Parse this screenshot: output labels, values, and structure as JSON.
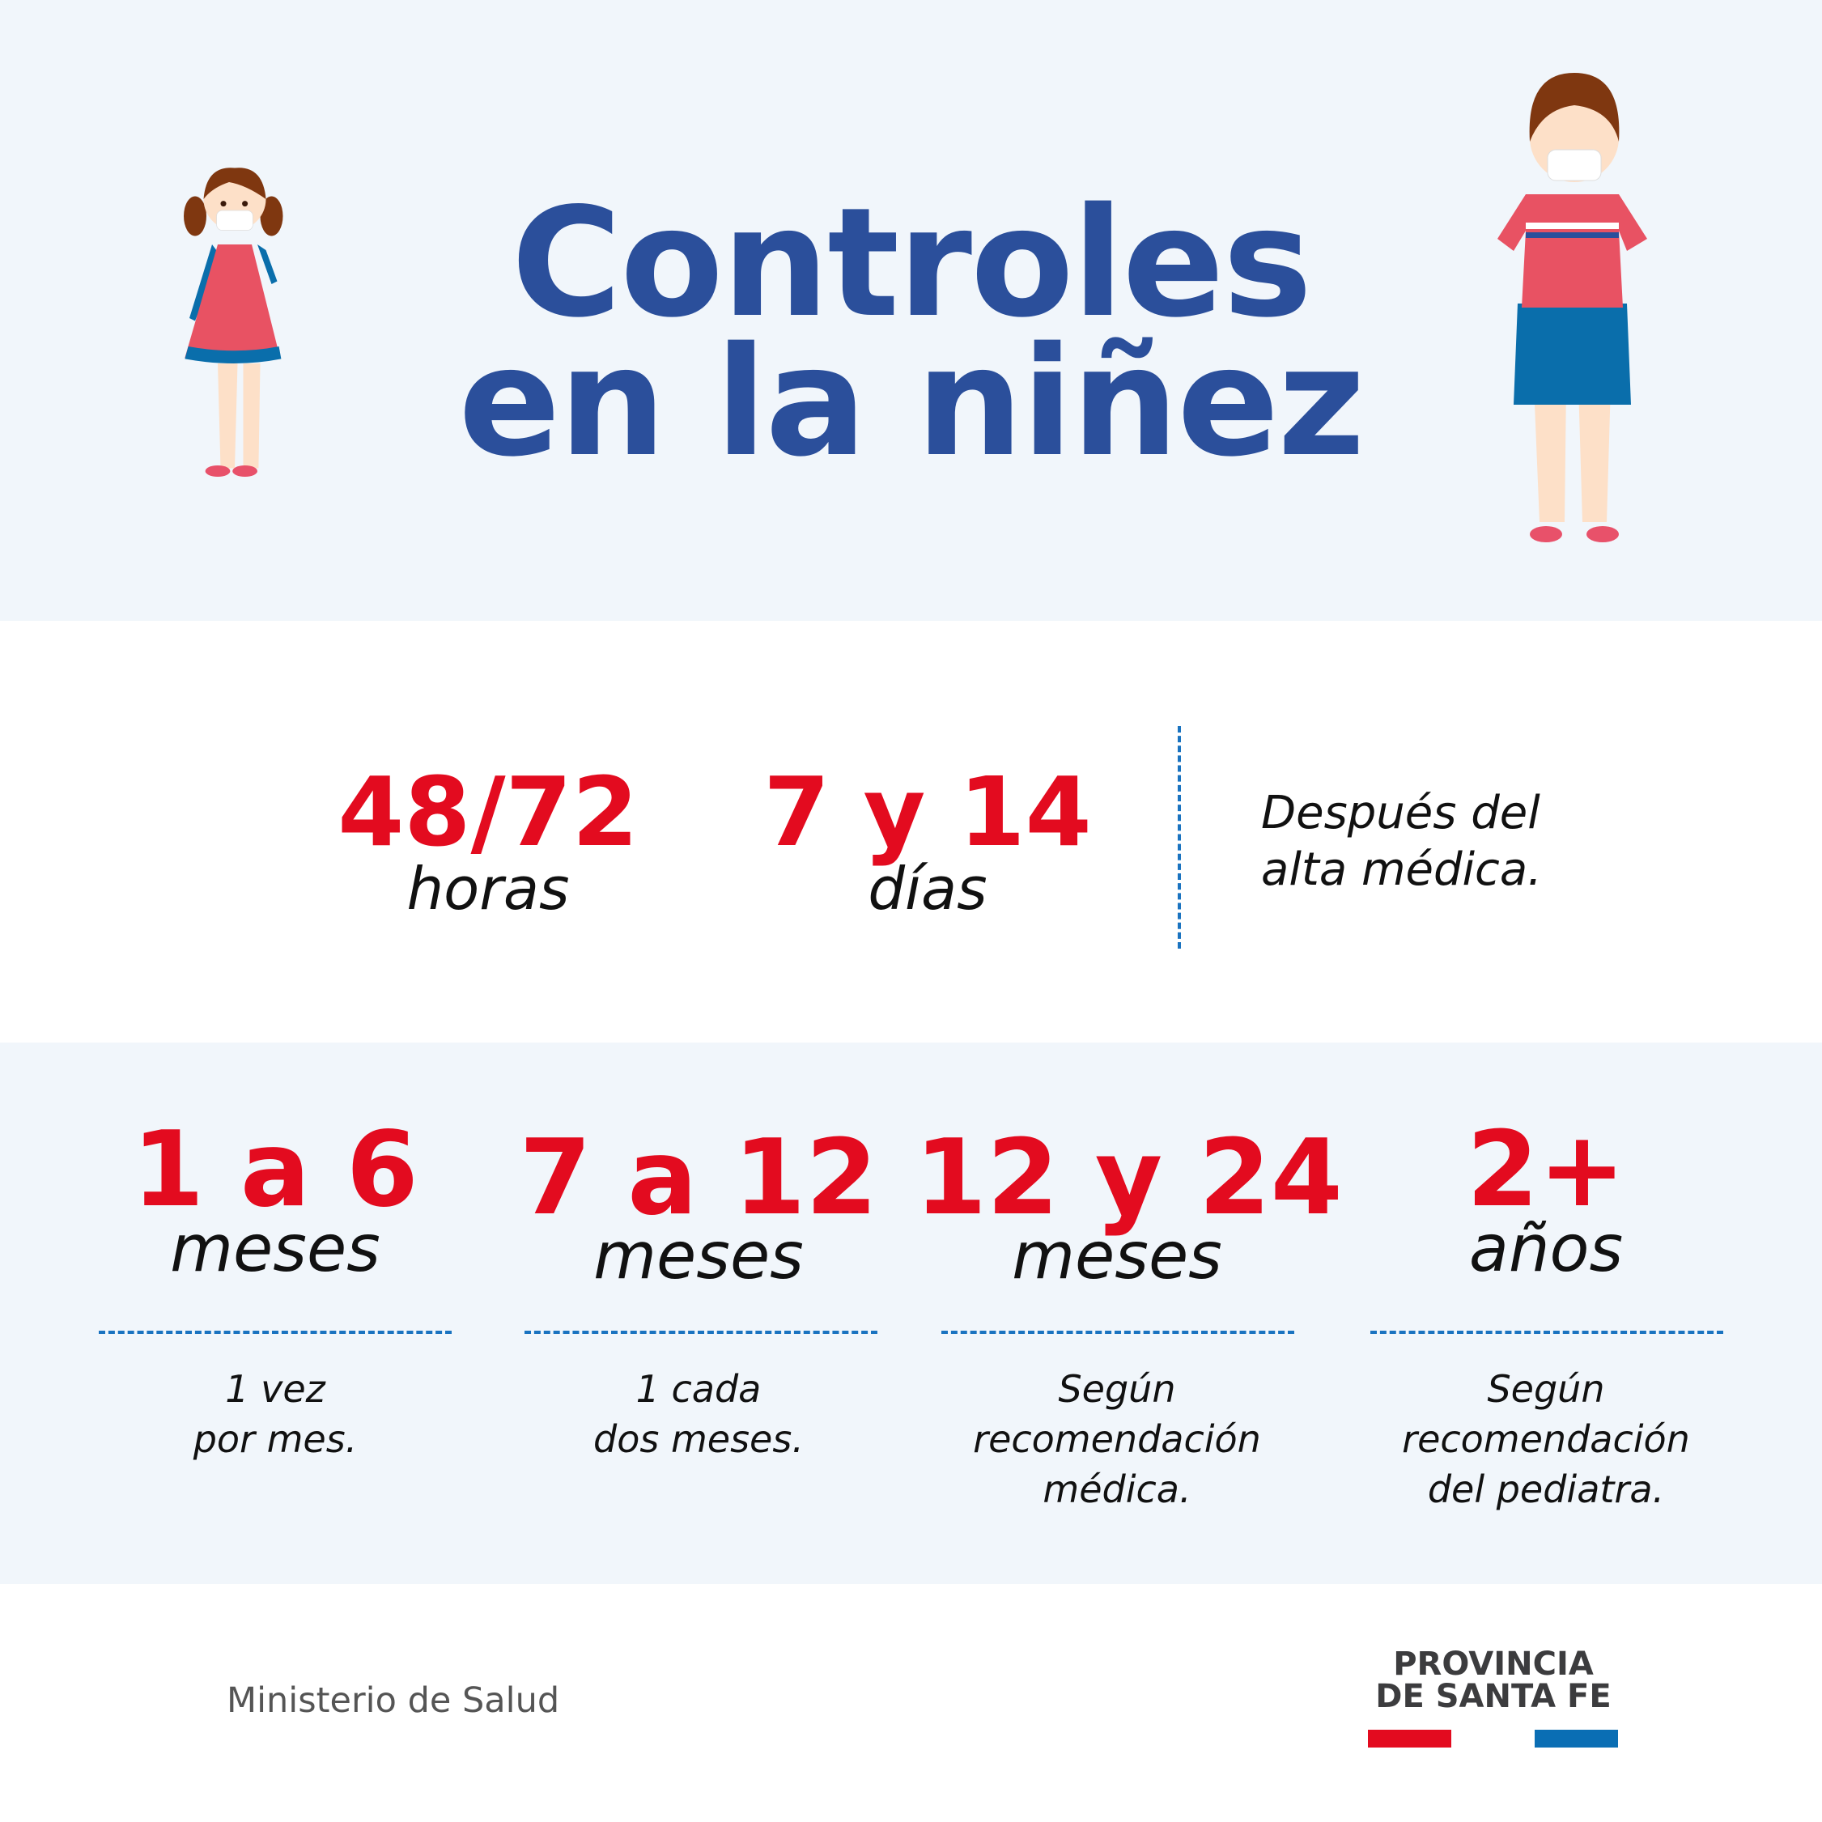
{
  "header": {
    "title_line1": "Controles",
    "title_line2": "en la niñez"
  },
  "first_row": [
    {
      "value": "48/72",
      "unit": "horas"
    },
    {
      "value": "7 y 14",
      "unit": "días"
    }
  ],
  "first_row_note": {
    "line1": "Después del",
    "line2": "alta médica."
  },
  "second_row": [
    {
      "value": "1 a 6",
      "unit": "meses",
      "desc": [
        "1 vez",
        "por mes."
      ]
    },
    {
      "value": "7 a 12",
      "unit": "meses",
      "desc": [
        "1 cada",
        "dos meses."
      ]
    },
    {
      "value": "12 y 24",
      "unit": "meses",
      "desc": [
        "Según",
        "recomendación",
        "médica."
      ]
    },
    {
      "value": "2+",
      "unit": "años",
      "desc": [
        "Según",
        "recomendación",
        "del pediatra."
      ]
    }
  ],
  "footer": {
    "ministry": "Ministerio de Salud",
    "logo_line1": "PROVINCIA",
    "logo_line2": "DE SANTA FE"
  },
  "colors": {
    "title": "#2b4f9b",
    "accent_red": "#e30b1f",
    "accent_blue": "#1a73c0",
    "background": "#f1f6fb"
  }
}
